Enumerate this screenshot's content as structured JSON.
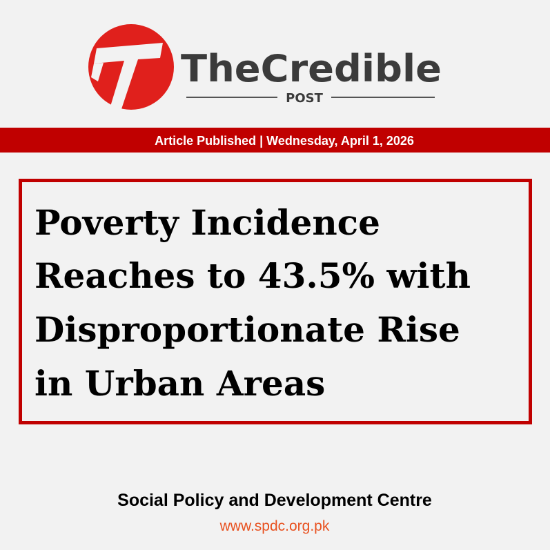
{
  "logo": {
    "name": "TheCredible",
    "subname": "POST"
  },
  "banner": {
    "text": "Article Published | Wednesday, April 1, 2026"
  },
  "headline": {
    "lines": [
      "Poverty Incidence",
      "Reaches to 43.5% with",
      "Disproportionate Rise",
      "in Urban Areas"
    ]
  },
  "footer": {
    "organization": "Social Policy and Development Centre",
    "url": "www.spdc.org.pk"
  }
}
